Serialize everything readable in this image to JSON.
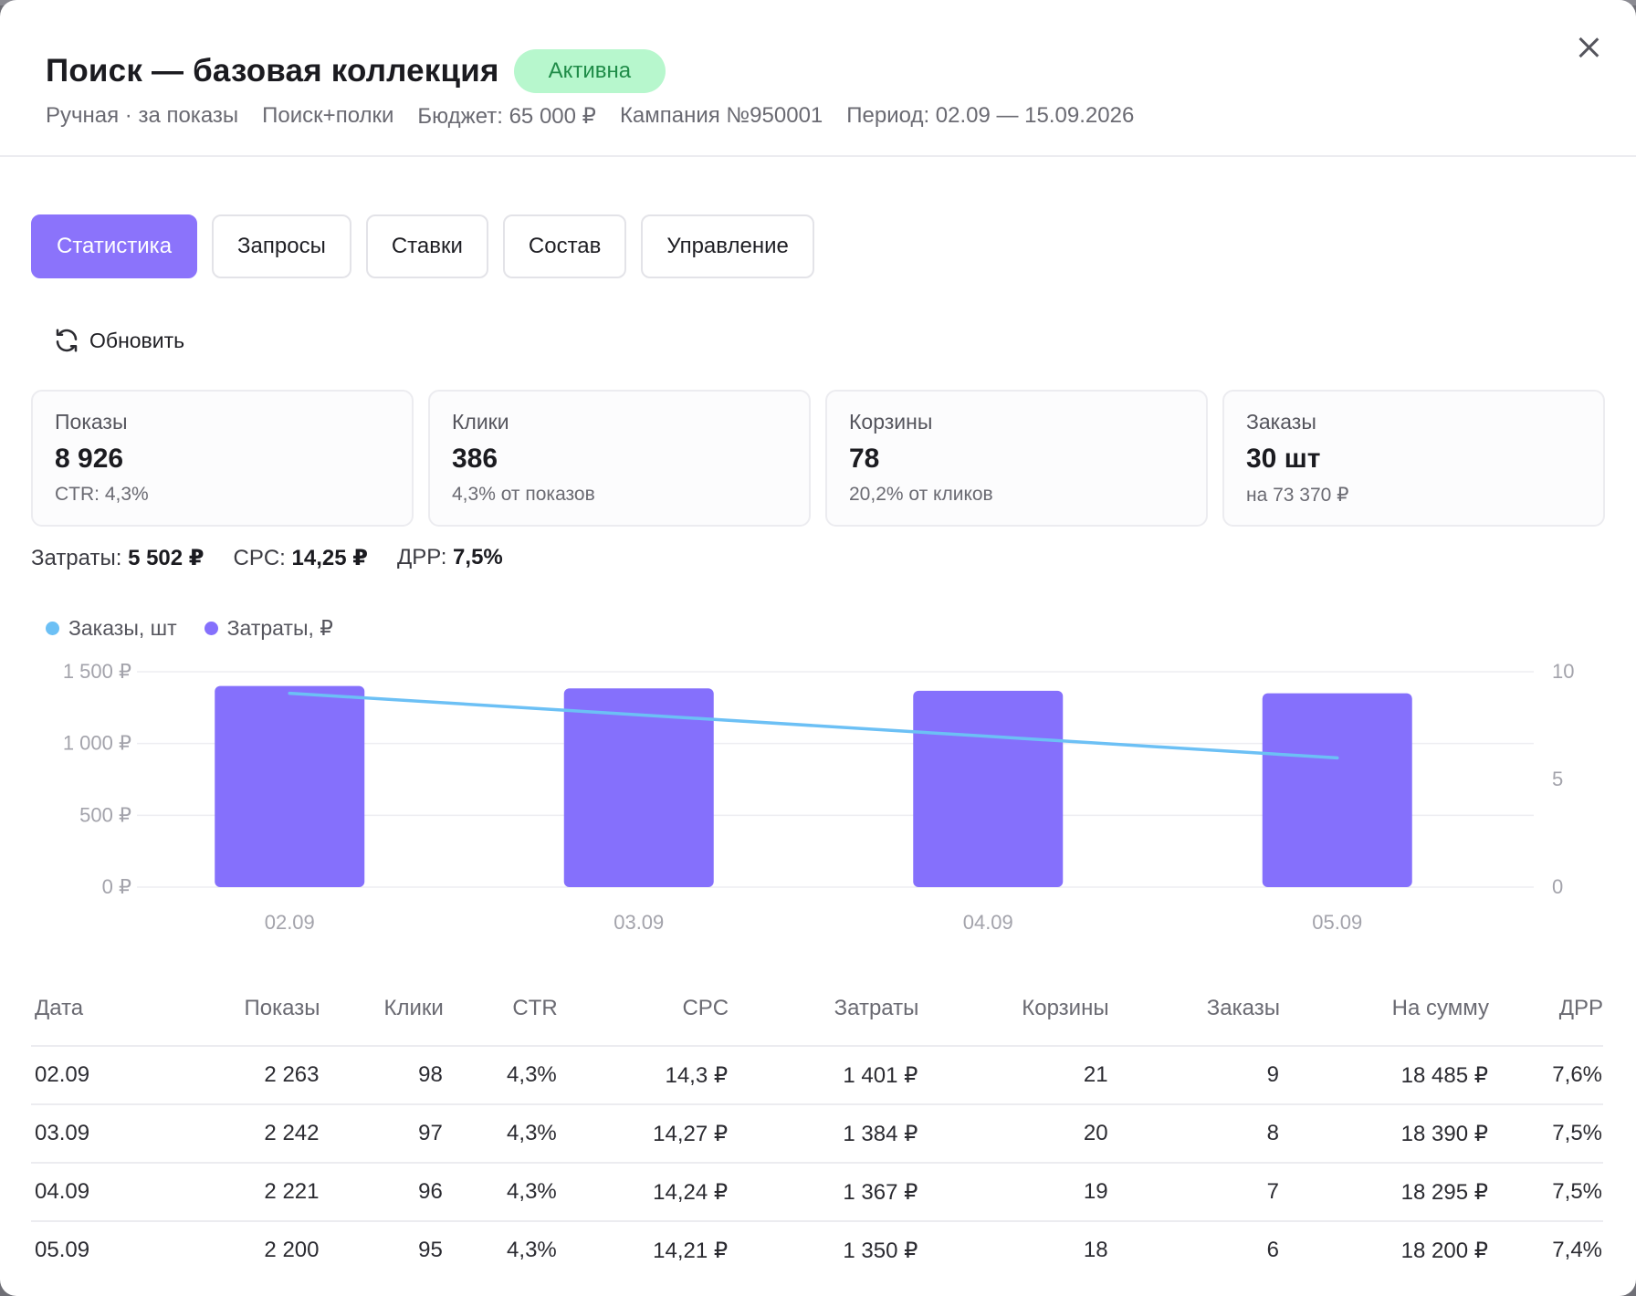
{
  "header": {
    "title": "Поиск — базовая коллекция",
    "status": "Активна",
    "meta": [
      "Ручная · за показы",
      "Поиск+полки",
      "Бюджет: 65 000 ₽",
      "Кампания №950001",
      "Период: 02.09 — 15.09.2026"
    ]
  },
  "icons": {
    "close": "close-icon",
    "refresh": "refresh-icon"
  },
  "tabs": [
    {
      "label": "Статистика",
      "active": true
    },
    {
      "label": "Запросы",
      "active": false
    },
    {
      "label": "Ставки",
      "active": false
    },
    {
      "label": "Состав",
      "active": false
    },
    {
      "label": "Управление",
      "active": false
    }
  ],
  "refresh_label": "Обновить",
  "cards": [
    {
      "label": "Показы",
      "value": "8 926",
      "sub": "CTR: 4,3%"
    },
    {
      "label": "Клики",
      "value": "386",
      "sub": "4,3% от показов"
    },
    {
      "label": "Корзины",
      "value": "78",
      "sub": "20,2% от кликов"
    },
    {
      "label": "Заказы",
      "value": "30 шт",
      "sub": "на 73 370 ₽"
    }
  ],
  "summary": [
    {
      "label": "Затраты:",
      "value": "5 502 ₽"
    },
    {
      "label": "CPC:",
      "value": "14,25 ₽"
    },
    {
      "label": "ДРР:",
      "value": "7,5%"
    }
  ],
  "colors": {
    "accent": "#8b73fb",
    "bar": "#8570fc",
    "line": "#6cc0f5",
    "badge_bg": "#b7f7cd",
    "badge_text": "#1f8c48"
  },
  "chart_data": {
    "type": "bar",
    "categories": [
      "02.09",
      "03.09",
      "04.09",
      "05.09"
    ],
    "series": [
      {
        "name": "Затраты, ₽",
        "type": "bar",
        "axis": "left",
        "values": [
          1401,
          1384,
          1367,
          1350
        ]
      },
      {
        "name": "Заказы, шт",
        "type": "line",
        "axis": "right",
        "values": [
          9,
          8,
          7,
          6
        ]
      }
    ],
    "ylim_left": [
      0,
      1500
    ],
    "yticks_left": [
      "0 ₽",
      "500 ₽",
      "1 000 ₽",
      "1 500 ₽"
    ],
    "ylim_right": [
      0,
      10
    ],
    "yticks_right": [
      "0",
      "5",
      "10"
    ],
    "legend": [
      "Заказы, шт",
      "Затраты, ₽"
    ],
    "legend_position": "top-left",
    "grid": true
  },
  "table": {
    "columns": [
      "Дата",
      "Показы",
      "Клики",
      "CTR",
      "CPC",
      "Затраты",
      "Корзины",
      "Заказы",
      "На сумму",
      "ДРР"
    ],
    "rows": [
      [
        "02.09",
        "2 263",
        "98",
        "4,3%",
        "14,3 ₽",
        "1 401 ₽",
        "21",
        "9",
        "18 485 ₽",
        "7,6%"
      ],
      [
        "03.09",
        "2 242",
        "97",
        "4,3%",
        "14,27 ₽",
        "1 384 ₽",
        "20",
        "8",
        "18 390 ₽",
        "7,5%"
      ],
      [
        "04.09",
        "2 221",
        "96",
        "4,3%",
        "14,24 ₽",
        "1 367 ₽",
        "19",
        "7",
        "18 295 ₽",
        "7,5%"
      ],
      [
        "05.09",
        "2 200",
        "95",
        "4,3%",
        "14,21 ₽",
        "1 350 ₽",
        "18",
        "6",
        "18 200 ₽",
        "7,4%"
      ]
    ]
  }
}
